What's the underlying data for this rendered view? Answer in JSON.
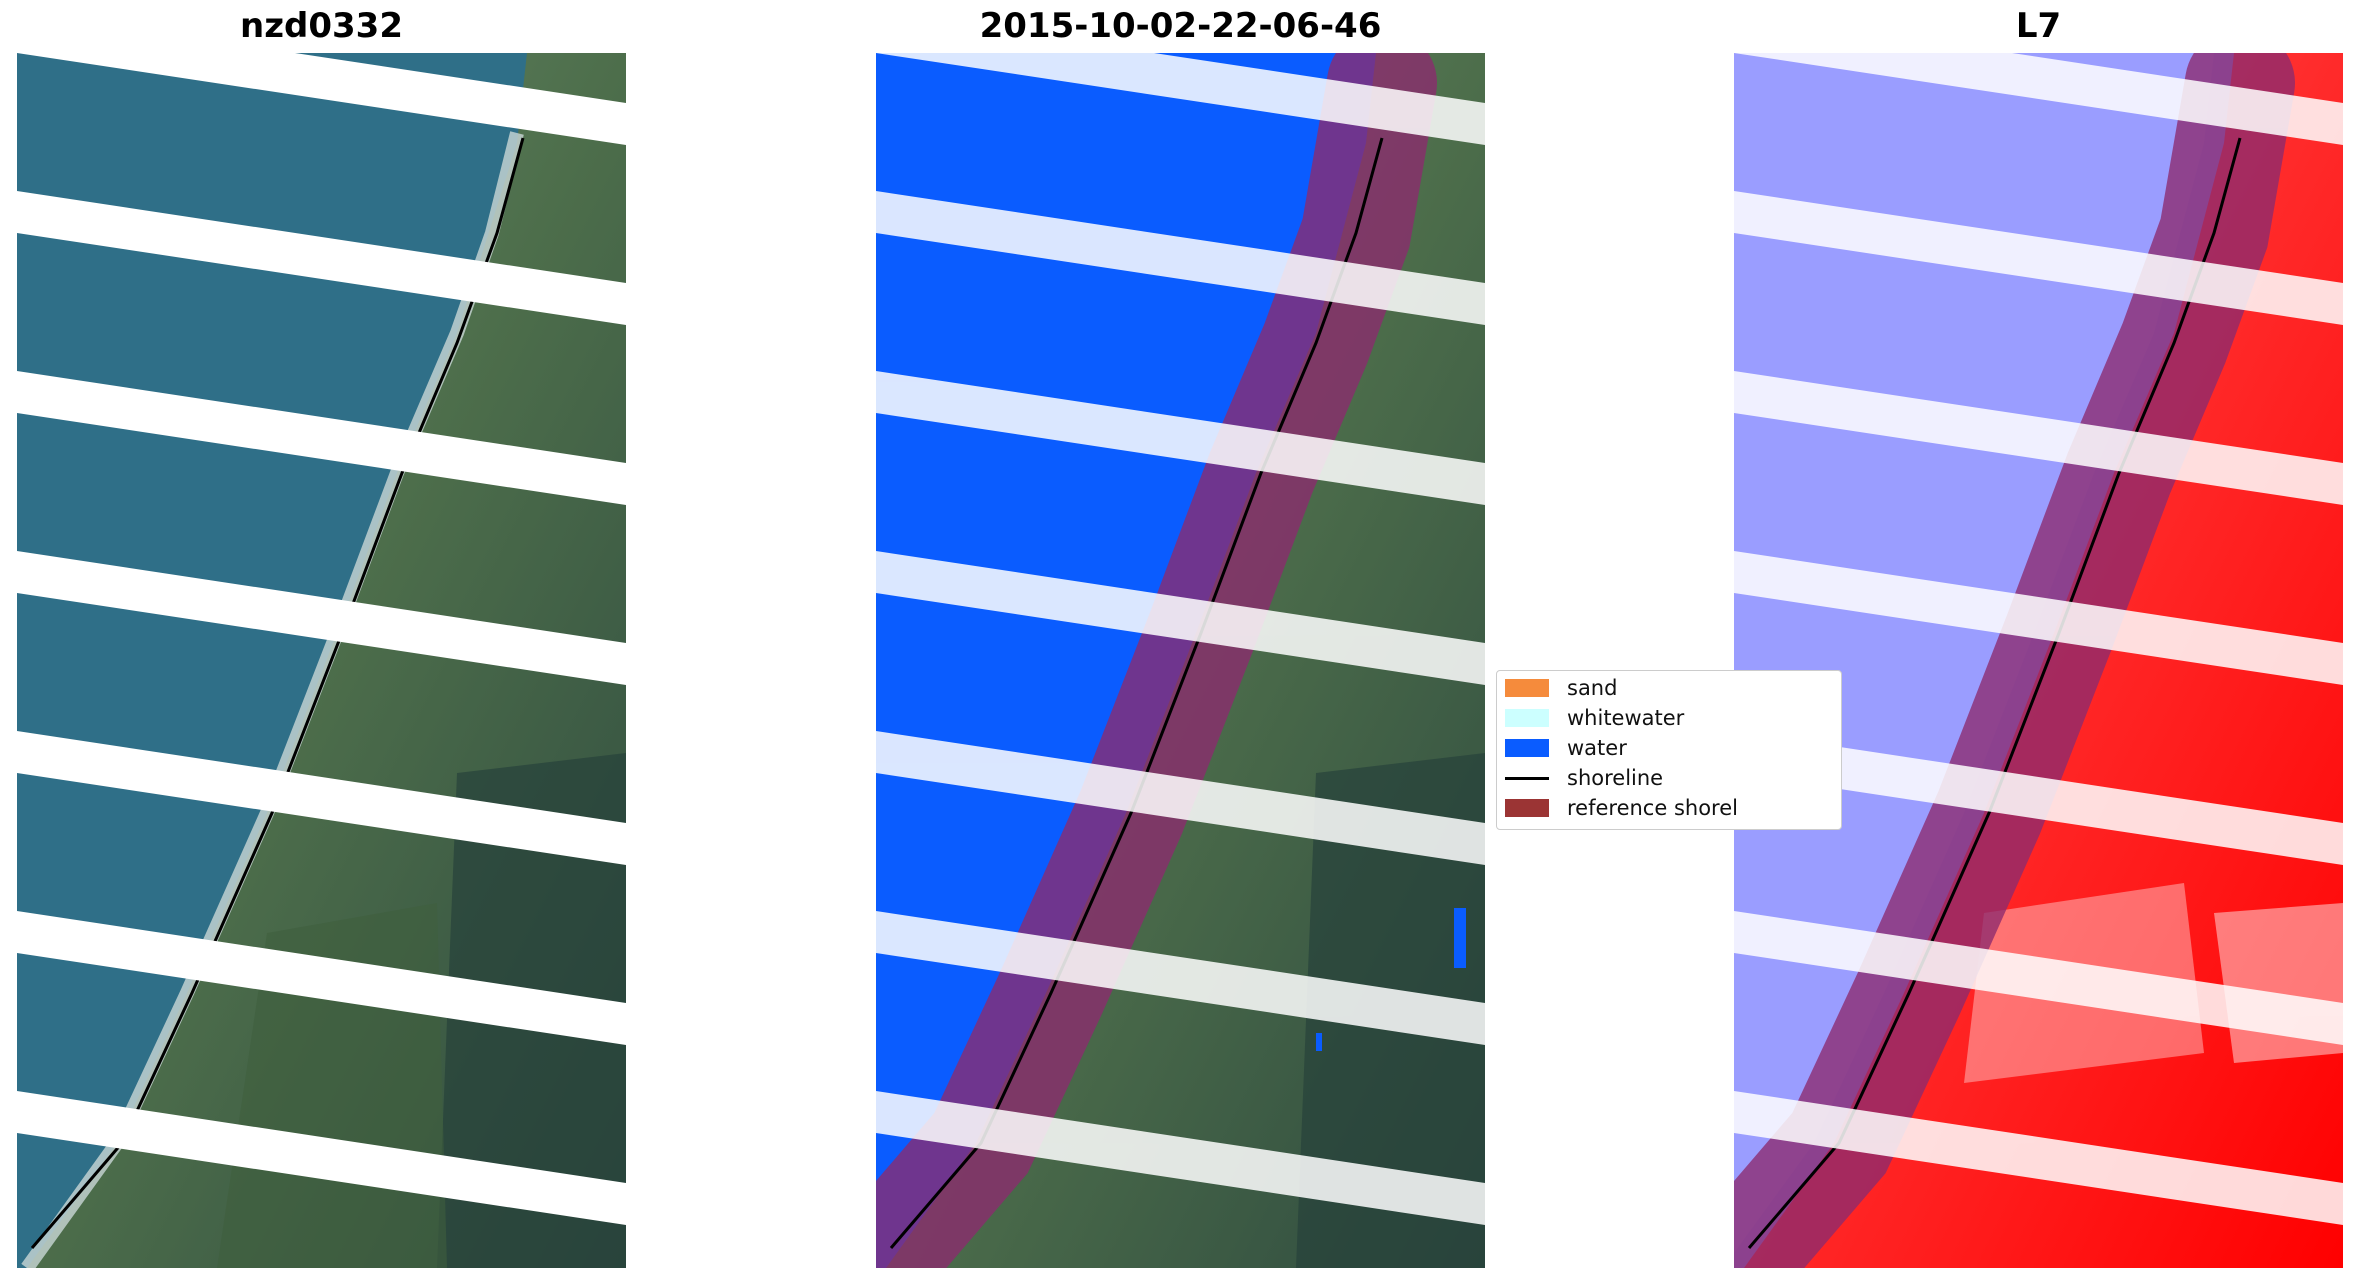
{
  "titles": {
    "left": "nzd0332",
    "middle": "2015-10-02-22-06-46",
    "right": "L7"
  },
  "legend": {
    "items": [
      {
        "label": "sand",
        "color": "#f58b3c",
        "kind": "patch"
      },
      {
        "label": "whitewater",
        "color": "#ccffff",
        "kind": "patch"
      },
      {
        "label": "water",
        "color": "#0a5cff",
        "kind": "patch"
      },
      {
        "label": "shoreline",
        "color": "#000000",
        "kind": "line"
      },
      {
        "label": "reference shorel",
        "color": "#9b3434",
        "kind": "patch"
      }
    ]
  },
  "colors": {
    "ocean": "#2f6f88",
    "land_green": "#4a6f4a",
    "water_class": "#0a5cff",
    "ndwi_water": "#8f93ff",
    "ndwi_land": "#ff2020",
    "reference_buffer": "#8c2a6e",
    "shoreline": "#000000",
    "nodata_stripe": "#ffffff"
  }
}
